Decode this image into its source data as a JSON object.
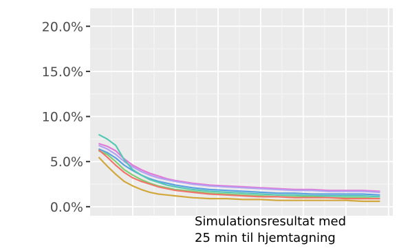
{
  "chart_data": {
    "type": "line",
    "title": "",
    "xlabel": "",
    "ylabel": "",
    "ylim": [
      -0.01,
      0.22
    ],
    "y_ticks": [
      {
        "value": 0.0,
        "label": "0.0%"
      },
      {
        "value": 0.05,
        "label": "5.0%"
      },
      {
        "value": 0.1,
        "label": "10.0%"
      },
      {
        "value": 0.15,
        "label": "15.0%"
      },
      {
        "value": 0.2,
        "label": "20.0%"
      }
    ],
    "grid": true,
    "legend": "none",
    "x": [
      1,
      2,
      3,
      4,
      5,
      6,
      7,
      8,
      9,
      10,
      12,
      14,
      16,
      18,
      20,
      22,
      24,
      26,
      28,
      30,
      32,
      34
    ],
    "xlim": [
      0,
      35.5
    ],
    "series": [
      {
        "color": "#e07ad6",
        "values": [
          0.07,
          0.067,
          0.062,
          0.053,
          0.046,
          0.041,
          0.037,
          0.034,
          0.031,
          0.029,
          0.026,
          0.024,
          0.023,
          0.022,
          0.021,
          0.02,
          0.019,
          0.019,
          0.018,
          0.018,
          0.018,
          0.017
        ]
      },
      {
        "color": "#b4a0f0",
        "values": [
          0.068,
          0.064,
          0.058,
          0.05,
          0.044,
          0.039,
          0.035,
          0.032,
          0.03,
          0.028,
          0.025,
          0.023,
          0.022,
          0.021,
          0.02,
          0.019,
          0.018,
          0.018,
          0.017,
          0.017,
          0.017,
          0.016
        ]
      },
      {
        "color": "#5aa0e0",
        "values": [
          0.064,
          0.06,
          0.054,
          0.046,
          0.04,
          0.035,
          0.031,
          0.028,
          0.026,
          0.024,
          0.021,
          0.019,
          0.018,
          0.017,
          0.016,
          0.015,
          0.015,
          0.014,
          0.014,
          0.014,
          0.014,
          0.013
        ]
      },
      {
        "color": "#56c9b4",
        "values": [
          0.08,
          0.075,
          0.068,
          0.052,
          0.041,
          0.035,
          0.03,
          0.027,
          0.024,
          0.022,
          0.019,
          0.017,
          0.016,
          0.015,
          0.014,
          0.013,
          0.013,
          0.012,
          0.012,
          0.012,
          0.012,
          0.011
        ]
      },
      {
        "color": "#7ecf72",
        "values": [
          0.062,
          0.058,
          0.05,
          0.041,
          0.035,
          0.03,
          0.026,
          0.023,
          0.021,
          0.019,
          0.017,
          0.015,
          0.014,
          0.013,
          0.012,
          0.011,
          0.011,
          0.011,
          0.01,
          0.01,
          0.01,
          0.009
        ]
      },
      {
        "color": "#f0756a",
        "values": [
          0.063,
          0.055,
          0.046,
          0.038,
          0.032,
          0.028,
          0.025,
          0.022,
          0.02,
          0.018,
          0.016,
          0.014,
          0.013,
          0.012,
          0.011,
          0.011,
          0.01,
          0.01,
          0.01,
          0.009,
          0.009,
          0.009
        ]
      },
      {
        "color": "#d2a83c",
        "values": [
          0.055,
          0.045,
          0.036,
          0.028,
          0.023,
          0.019,
          0.016,
          0.014,
          0.013,
          0.012,
          0.01,
          0.009,
          0.009,
          0.008,
          0.008,
          0.007,
          0.007,
          0.007,
          0.007,
          0.007,
          0.006,
          0.006
        ]
      }
    ]
  },
  "caption": {
    "line1": "Simulationsresultat med",
    "line2": "25 min til hjemtagning"
  }
}
